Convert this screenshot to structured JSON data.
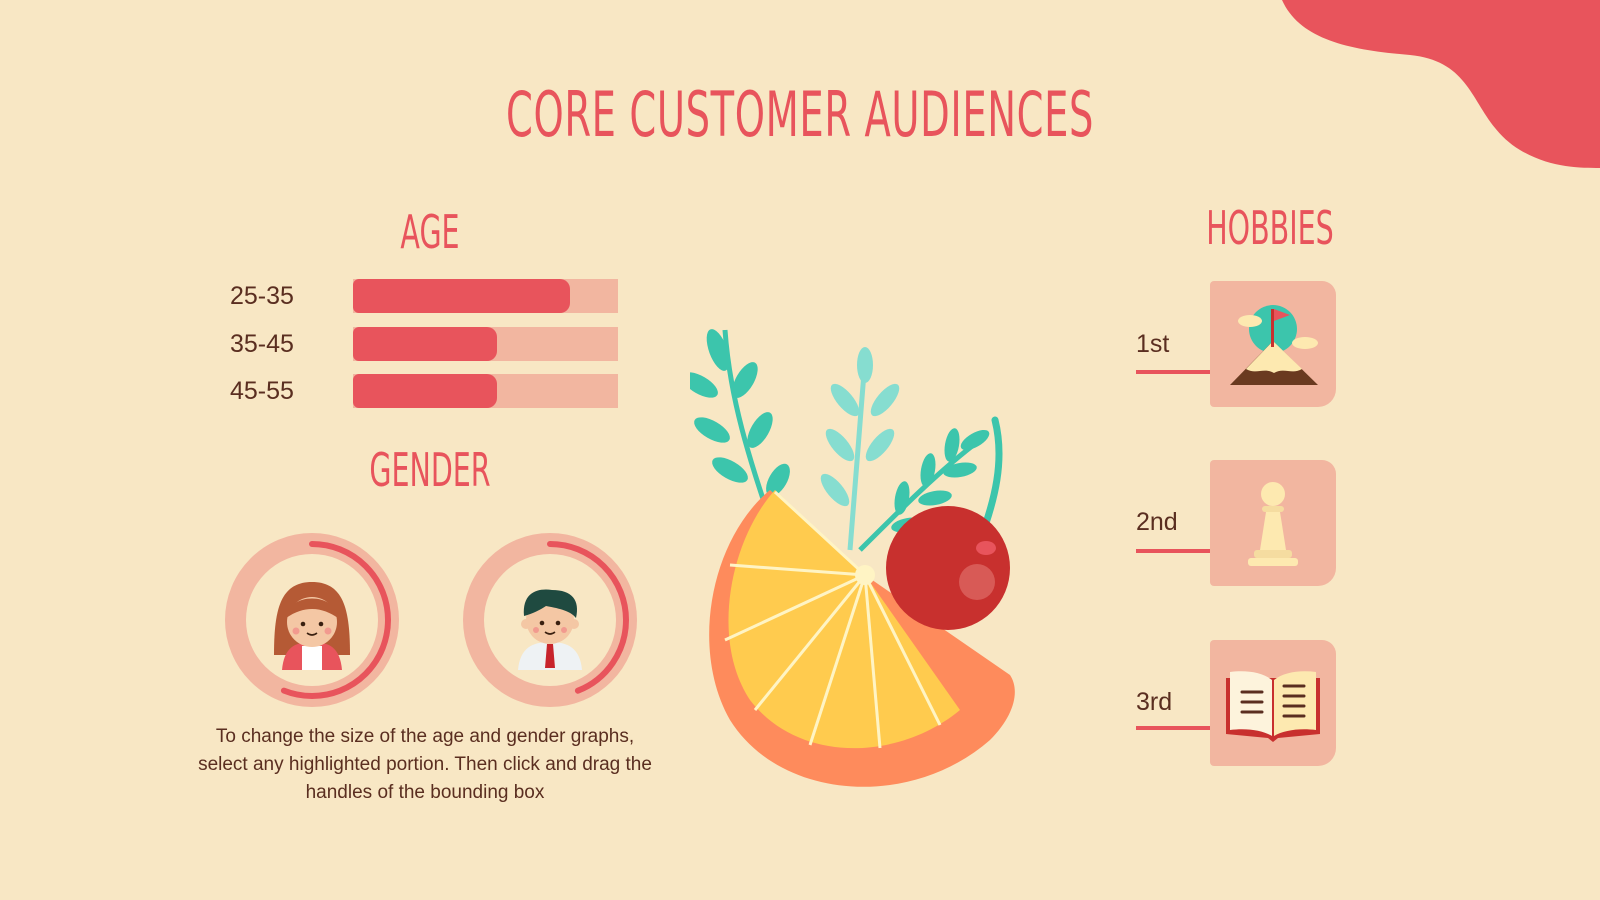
{
  "title": "CORE CUSTOMER AUDIENCES",
  "age": {
    "heading": "AGE",
    "rows": [
      {
        "label": "25-35",
        "fraction": 0.82
      },
      {
        "label": "35-45",
        "fraction": 0.545
      },
      {
        "label": "45-55",
        "fraction": 0.545
      }
    ]
  },
  "gender": {
    "heading": "GENDER",
    "female_fraction": 0.56,
    "male_fraction": 0.44
  },
  "note": "To change the size of the age and gender graphs, select any highlighted portion. Then click and drag the handles of the bounding box",
  "hobbies": {
    "heading": "HOBBIES",
    "items": [
      {
        "rank": "1st",
        "icon": "mountain-flag-icon"
      },
      {
        "rank": "2nd",
        "icon": "chess-pawn-icon"
      },
      {
        "rank": "3rd",
        "icon": "open-book-icon"
      }
    ]
  },
  "colors": {
    "background": "#f8e7c4",
    "accent": "#e8545c",
    "track": "#f2b6a0",
    "text": "#5a2e20"
  }
}
